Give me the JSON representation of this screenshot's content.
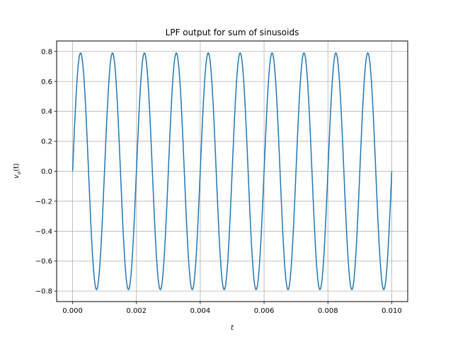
{
  "chart_data": {
    "type": "line",
    "title": "LPF output for sum of sinusoids",
    "xlabel": "t",
    "ylabel_main": "v",
    "ylabel_sub": "o",
    "ylabel_tail": "(t)",
    "xlim": [
      -0.0005,
      0.0105
    ],
    "ylim": [
      -0.87,
      0.87
    ],
    "xticks": [
      0.0,
      0.002,
      0.004,
      0.006,
      0.008,
      0.01
    ],
    "xtick_labels": [
      "0.000",
      "0.002",
      "0.004",
      "0.006",
      "0.008",
      "0.010"
    ],
    "yticks": [
      -0.8,
      -0.6,
      -0.4,
      -0.2,
      0.0,
      0.2,
      0.4,
      0.6,
      0.8
    ],
    "ytick_labels": [
      "−0.8",
      "−0.6",
      "−0.4",
      "−0.2",
      "0.0",
      "0.2",
      "0.4",
      "0.6",
      "0.8"
    ],
    "grid": true,
    "line_color": "#1f77b4",
    "series": [
      {
        "amplitude": 0.79,
        "frequency_hz": 1000,
        "t_start": 0.0,
        "t_end": 0.01
      }
    ]
  }
}
